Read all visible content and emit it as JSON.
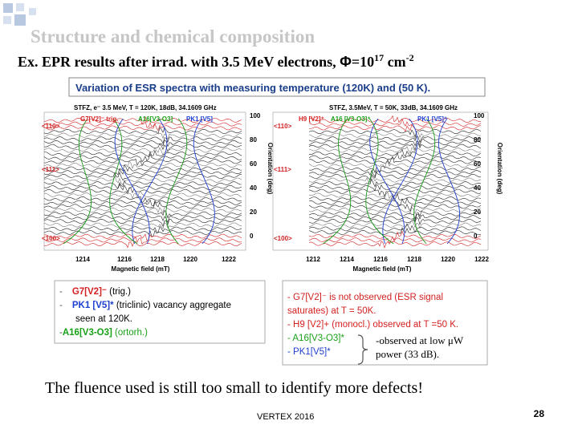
{
  "title": "Structure and chemical composition",
  "subtitle": {
    "text": "Ex. EPR results after irrad. with 3.5 MeV electrons, ",
    "symbol": "Φ",
    "fluence": "=10",
    "exp": "17",
    "unit": " cm",
    "unit_exp": "-2"
  },
  "figure": {
    "title": "Variation of ESR spectra with measuring temperature (120K) and (50 K).",
    "panels": [
      {
        "header": "STFZ, e⁻ 3.5 MeV, T = 120K, 18dB, 34.1609 GHz",
        "labels": [
          "G7[V2]⁻ trig.",
          "A16[V3-O3]",
          "PK1 [V5]"
        ],
        "orientations": [
          "<110>",
          "<111>",
          "<100>"
        ],
        "angle_ticks": [
          "100",
          "80",
          "60",
          "40",
          "20",
          "0"
        ],
        "axis_label": "Orientation (deg)",
        "field_ticks": [
          "1214",
          "1216",
          "1218",
          "1220",
          "1222"
        ],
        "field_label": "Magnetic field (mT)"
      },
      {
        "header": "STFZ, 3.5MeV, T = 50K, 33dB, 34.1609 GHz",
        "labels": [
          "H9 [V2]⁺",
          "A16 [V3-O3]⁺",
          "PK1 [V5]⁺"
        ],
        "orientations": [
          "<110>",
          "<111>",
          "<100>"
        ],
        "angle_ticks": [
          "100",
          "80",
          "60",
          "40",
          "20",
          "0"
        ],
        "axis_label": "Orientation (deg)",
        "field_ticks": [
          "1212",
          "1214",
          "1216",
          "1218",
          "1220",
          "1222"
        ],
        "field_label": "Magnetic field (mT)"
      }
    ]
  },
  "legend_left": [
    {
      "bullet": "-",
      "name": "G7[V2]⁻",
      "desc": " (trig.)"
    },
    {
      "bullet": "-",
      "name": "PK1 [V5]*",
      "desc": " (triclinic) vacancy aggregate"
    },
    {
      "bullet": "",
      "name": "",
      "desc": "seen at 120K."
    },
    {
      "bullet": "-",
      "name": "A16[V3-O3]",
      "desc": " (ortorh.)"
    }
  ],
  "legend_right": [
    {
      "name": "- G7[V2]⁻",
      "desc": " is not observed (ESR signal"
    },
    {
      "name": "",
      "desc": "saturates)  at T = 50K."
    },
    {
      "name": "- H9 [V2]+",
      "desc": " (monocl.)  observed at T =50 K."
    },
    {
      "name": "- A16[V3-O3]*",
      "desc": "-observed at low μW"
    },
    {
      "name": "- PK1[V5]*",
      "desc": "power (33 dB)."
    }
  ],
  "note": "The fluence used is still too small to identify more defects!",
  "footer": "VERTEX 2016",
  "page": "28"
}
